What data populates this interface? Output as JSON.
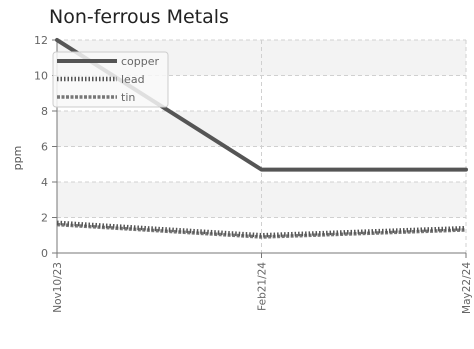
{
  "chart_data": {
    "type": "line",
    "title": "Non-ferrous Metals",
    "ylabel": "ppm",
    "xlabel": "",
    "x": [
      "Nov10/23",
      "Feb21/24",
      "May22/24"
    ],
    "ylim": [
      0,
      12
    ],
    "yticks": [
      0,
      2,
      4,
      6,
      8,
      10,
      12
    ],
    "grid": true,
    "legend_position": "top-left",
    "series": [
      {
        "name": "copper",
        "values": [
          12,
          4.7,
          4.7
        ],
        "color": "#555555",
        "style": "solid"
      },
      {
        "name": "lead",
        "values": [
          1.7,
          1.0,
          1.4
        ],
        "color": "#555555",
        "style": "dotted"
      },
      {
        "name": "tin",
        "values": [
          1.6,
          0.9,
          1.3
        ],
        "color": "#777777",
        "style": "dashed"
      }
    ]
  }
}
